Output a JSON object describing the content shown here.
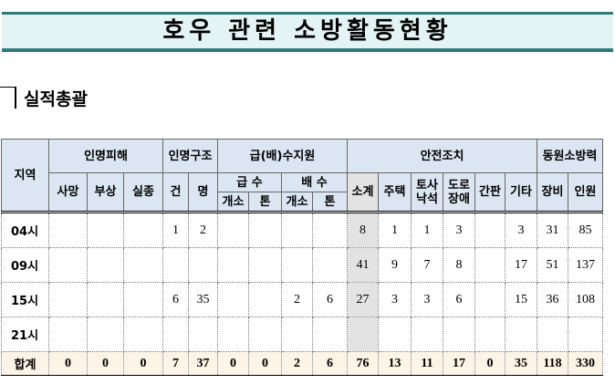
{
  "title": "호우 관련 소방활동현황",
  "section": "실적총괄",
  "header": {
    "region": "지역",
    "casualty": "인명피해",
    "death": "사망",
    "injury": "부상",
    "missing": "실종",
    "rescue": "인명구조",
    "cases": "건",
    "persons": "명",
    "water": "급(배)수지원",
    "supply": "급 수",
    "drain": "배 수",
    "sites": "개소",
    "tons": "톤",
    "safety": "안전조치",
    "subtotal": "소계",
    "house": "주택",
    "landslide": "토사낙석",
    "road": "도로장애",
    "signboard": "간판",
    "etc": "기타",
    "mobilized": "동원소방력",
    "equipment": "장비",
    "personnel": "인원"
  },
  "rows": [
    {
      "label": "04시",
      "values": [
        "",
        "",
        "",
        "1",
        "2",
        "",
        "",
        "",
        "",
        "8",
        "1",
        "1",
        "3",
        "",
        "3",
        "31",
        "85"
      ]
    },
    {
      "label": "09시",
      "values": [
        "",
        "",
        "",
        "",
        "",
        "",
        "",
        "",
        "",
        "41",
        "9",
        "7",
        "8",
        "",
        "17",
        "51",
        "137"
      ]
    },
    {
      "label": "15시",
      "values": [
        "",
        "",
        "",
        "6",
        "35",
        "",
        "",
        "2",
        "6",
        "27",
        "3",
        "3",
        "6",
        "",
        "15",
        "36",
        "108"
      ]
    },
    {
      "label": "21시",
      "values": [
        "",
        "",
        "",
        "",
        "",
        "",
        "",
        "",
        "",
        "",
        "",
        "",
        "",
        "",
        "",
        "",
        ""
      ]
    }
  ],
  "total": {
    "label": "합계",
    "values": [
      "0",
      "0",
      "0",
      "7",
      "37",
      "0",
      "0",
      "2",
      "6",
      "76",
      "13",
      "11",
      "17",
      "0",
      "35",
      "118",
      "330"
    ]
  },
  "colors": {
    "title_band": "#e4f4f4",
    "title_border": "#2e7b7b",
    "header": "#dbe6f2",
    "subtotal": "#e3e3e3",
    "total_row": "#fdf3e6"
  }
}
